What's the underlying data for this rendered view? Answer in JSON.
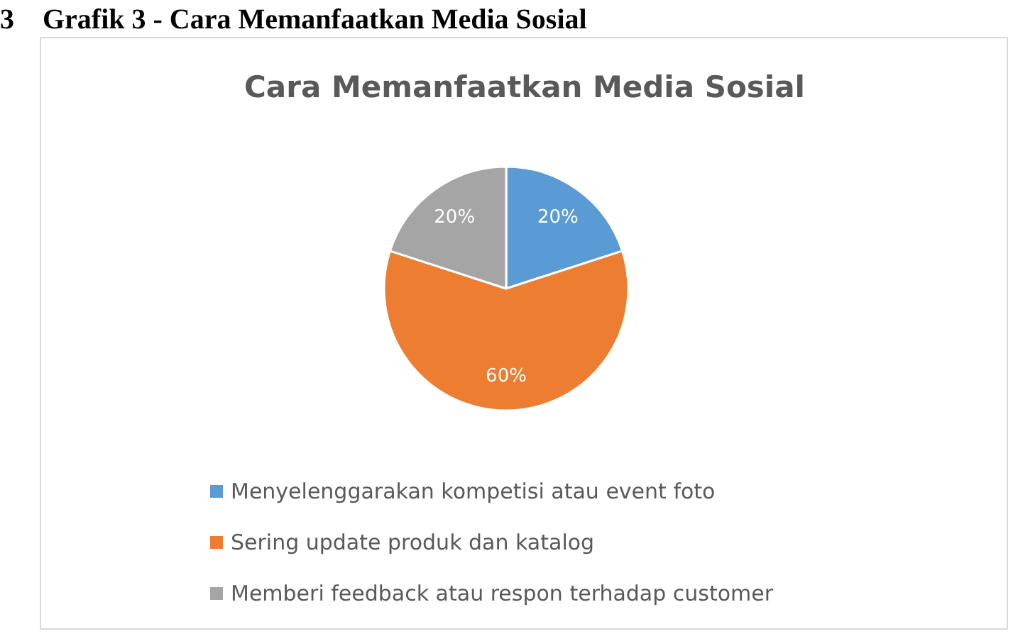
{
  "chart_data": {
    "type": "pie",
    "title": "Cara Memanfaatkan Media Sosial",
    "annotations": [
      "3    Grafik 3 - Cara Memanfaatkan Media Sosial"
    ],
    "categories": [
      "Menyelenggarakan kompetisi atau event foto",
      "Sering update produk dan katalog",
      "Memberi feedback atau respon terhadap customer"
    ],
    "values": [
      20,
      60,
      20
    ],
    "colors": [
      "#5b9bd5",
      "#ed7d31",
      "#a5a5a5"
    ],
    "value_labels": [
      "20%",
      "60%",
      "20%"
    ],
    "legend": "bottom"
  }
}
